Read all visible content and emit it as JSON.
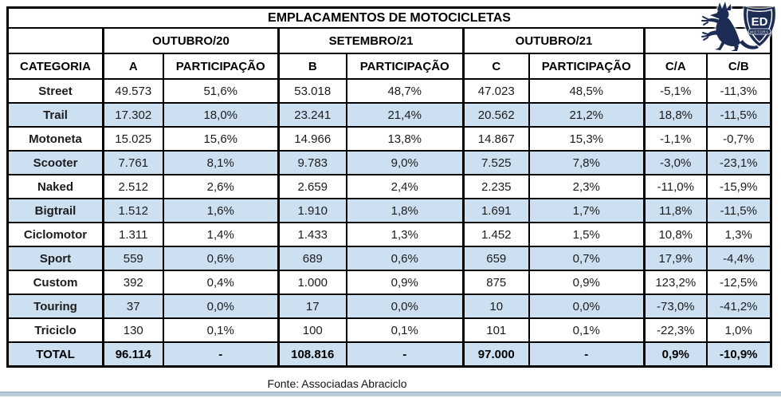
{
  "title": "EMPLACAMENTOS DE MOTOCICLETAS",
  "logo": {
    "shield_line1": "ED",
    "shield_line2": "MOTORS",
    "color": "#1d2c55"
  },
  "footer": {
    "source": "Fonte: Associadas Abraciclo"
  },
  "colors": {
    "band_blue": "#cde0f1",
    "border_black": "#000000",
    "text_dark": "#1c1c1c",
    "bottom_bar": "#bccbd8"
  },
  "chart_data": {
    "type": "table",
    "title": "EMPLACAMENTOS DE MOTOCICLETAS",
    "column_groups": [
      {
        "label": "",
        "span": 1
      },
      {
        "label": "OUTUBRO/20",
        "span": 2
      },
      {
        "label": "SETEMBRO/21",
        "span": 2
      },
      {
        "label": "OUTUBRO/21",
        "span": 2
      },
      {
        "label": "",
        "span": 2
      }
    ],
    "columns": [
      "CATEGORIA",
      "A",
      "PARTICIPAÇÃO",
      "B",
      "PARTICIPAÇÃO",
      "C",
      "PARTICIPAÇÃO",
      "C/A",
      "C/B"
    ],
    "rows": [
      {
        "cells": [
          "Street",
          "49.573",
          "51,6%",
          "53.018",
          "48,7%",
          "47.023",
          "48,5%",
          "-5,1%",
          "-11,3%"
        ]
      },
      {
        "cells": [
          "Trail",
          "17.302",
          "18,0%",
          "23.241",
          "21,4%",
          "20.562",
          "21,2%",
          "18,8%",
          "-11,5%"
        ]
      },
      {
        "cells": [
          "Motoneta",
          "15.025",
          "15,6%",
          "14.966",
          "13,8%",
          "14.867",
          "15,3%",
          "-1,1%",
          "-0,7%"
        ]
      },
      {
        "cells": [
          "Scooter",
          "7.761",
          "8,1%",
          "9.783",
          "9,0%",
          "7.525",
          "7,8%",
          "-3,0%",
          "-23,1%"
        ]
      },
      {
        "cells": [
          "Naked",
          "2.512",
          "2,6%",
          "2.659",
          "2,4%",
          "2.235",
          "2,3%",
          "-11,0%",
          "-15,9%"
        ]
      },
      {
        "cells": [
          "Bigtrail",
          "1.512",
          "1,6%",
          "1.910",
          "1,8%",
          "1.691",
          "1,7%",
          "11,8%",
          "-11,5%"
        ]
      },
      {
        "cells": [
          "Ciclomotor",
          "1.311",
          "1,4%",
          "1.433",
          "1,3%",
          "1.452",
          "1,5%",
          "10,8%",
          "1,3%"
        ]
      },
      {
        "cells": [
          "Sport",
          "559",
          "0,6%",
          "689",
          "0,6%",
          "659",
          "0,7%",
          "17,9%",
          "-4,4%"
        ]
      },
      {
        "cells": [
          "Custom",
          "392",
          "0,4%",
          "1.000",
          "0,9%",
          "875",
          "0,9%",
          "123,2%",
          "-12,5%"
        ]
      },
      {
        "cells": [
          "Touring",
          "37",
          "0,0%",
          "17",
          "0,0%",
          "10",
          "0,0%",
          "-73,0%",
          "-41,2%"
        ]
      },
      {
        "cells": [
          "Triciclo",
          "130",
          "0,1%",
          "100",
          "0,1%",
          "101",
          "0,1%",
          "-22,3%",
          "1,0%"
        ]
      },
      {
        "cells": [
          "TOTAL",
          "96.114",
          "-",
          "108.816",
          "-",
          "97.000",
          "-",
          "0,9%",
          "-10,9%"
        ],
        "is_total": true
      }
    ],
    "source": "Fonte: Associadas Abraciclo"
  }
}
